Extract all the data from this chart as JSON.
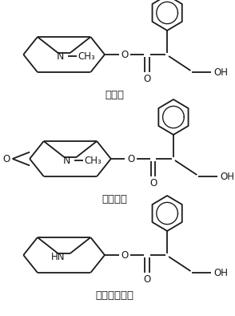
{
  "bg_color": "#ffffff",
  "line_color": "#1a1a1a",
  "line_width": 1.3,
  "label1": "莎莰焰",
  "label2": "东莎莰焰",
  "label3": "去甲基莎莰焰",
  "font_size_label": 9.5,
  "fig_width": 2.94,
  "fig_height": 3.94,
  "dpi": 100
}
